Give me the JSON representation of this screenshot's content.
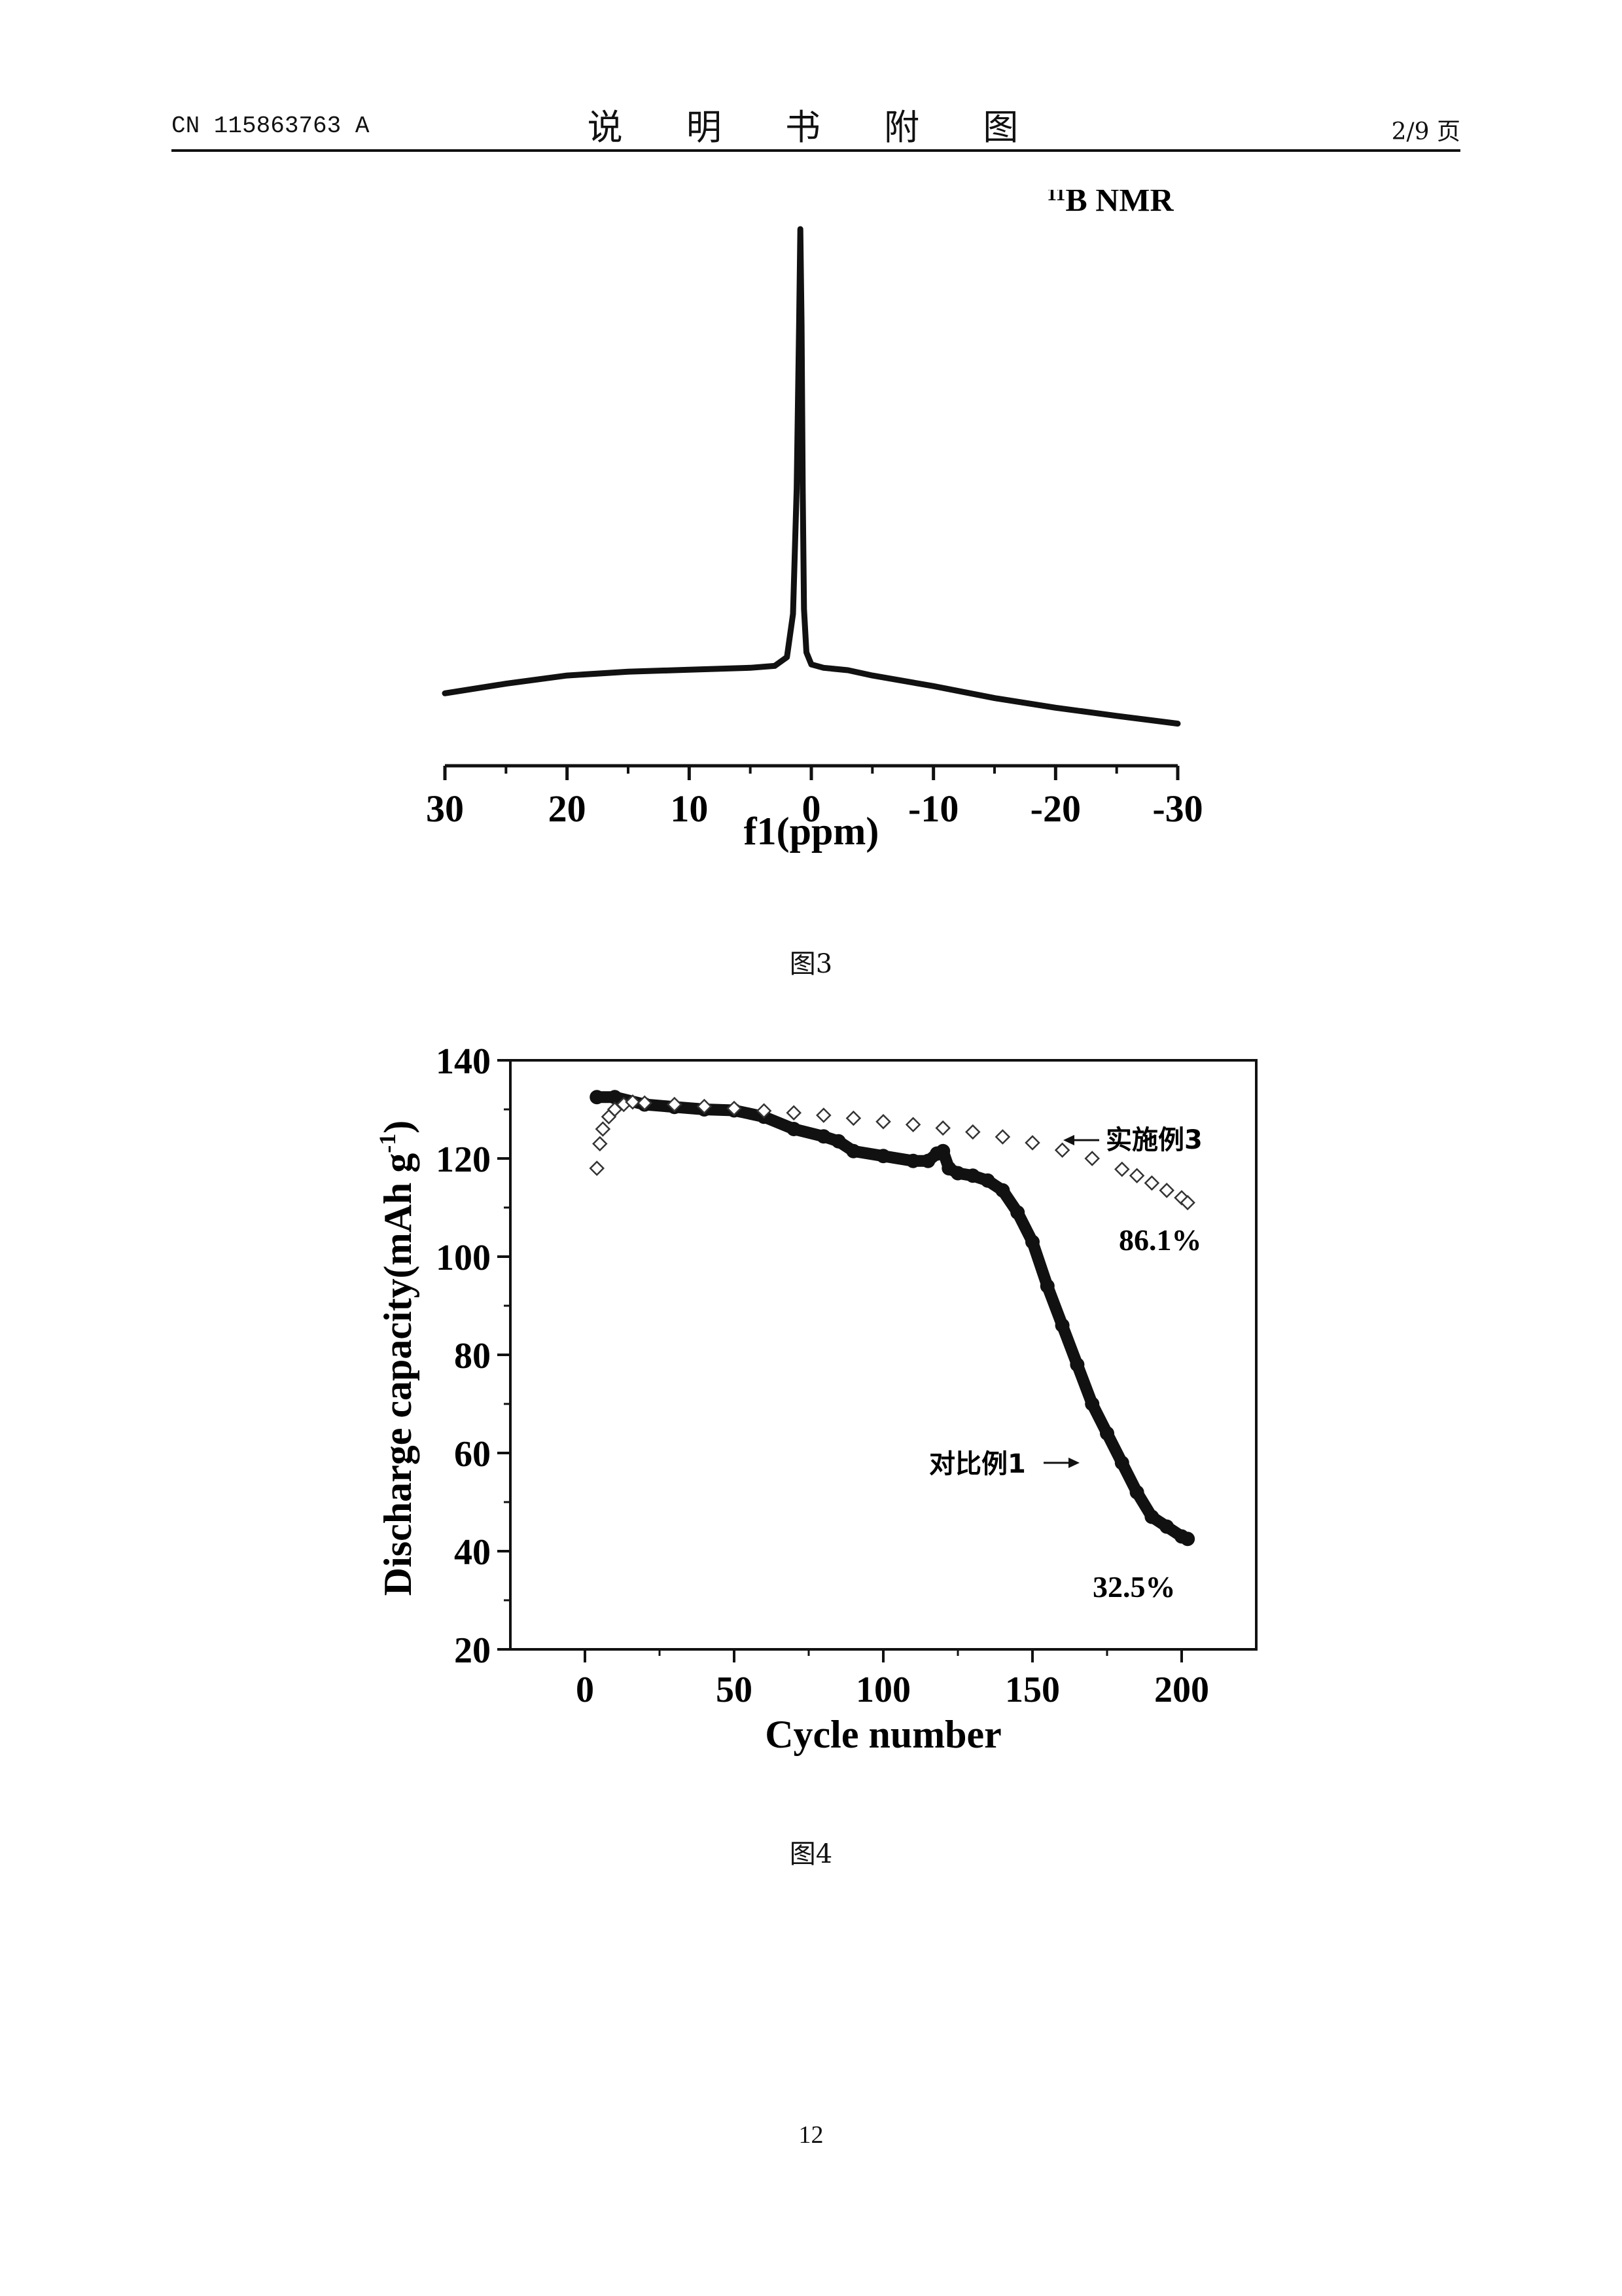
{
  "header": {
    "doc_number": "CN 115863763 A",
    "title": "说 明 书 附 图",
    "page_of": "2/9 页"
  },
  "figure3": {
    "caption": "图3",
    "nucleus_sup": "11",
    "nucleus_label": "B NMR",
    "xlabel": "f1(ppm)"
  },
  "figure4": {
    "caption": "图4",
    "xlabel": "Cycle number",
    "ylabel": "Discharge capacity(mAh g",
    "ylabel_sup": "-1",
    "ylabel_close": ")",
    "label_example": "实施例3",
    "label_comparative": "对比例1",
    "retention_example": "86.1%",
    "retention_comparative": "32.5%"
  },
  "page_number": "12",
  "chart_data": [
    {
      "type": "line",
      "title": "11B NMR",
      "xlabel": "f1(ppm)",
      "ylabel": "",
      "xlim": [
        30,
        -30
      ],
      "x_reversed": true,
      "xticks": [
        30,
        20,
        10,
        0,
        -10,
        -20,
        -30
      ],
      "x_tick_labels": [
        "30",
        "20",
        "10",
        "0",
        "-10",
        "-20",
        "-30"
      ],
      "y_axis_visible": false,
      "grid": false,
      "series": [
        {
          "x": [
            30,
            25,
            20,
            15,
            10,
            5,
            3,
            2,
            1.5,
            1.2,
            1.0,
            0.9,
            0.8,
            0.7,
            0.6,
            0.4,
            0.0,
            -1.0,
            -3,
            -5,
            -10,
            -15,
            -20,
            -25,
            -30
          ],
          "y": [
            0.035,
            0.055,
            0.072,
            0.08,
            0.084,
            0.088,
            0.092,
            0.11,
            0.2,
            0.46,
            0.8,
            1.0,
            0.8,
            0.45,
            0.21,
            0.12,
            0.095,
            0.088,
            0.083,
            0.072,
            0.05,
            0.025,
            0.005,
            -0.012,
            -0.028
          ]
        }
      ]
    },
    {
      "type": "scatter",
      "title": "",
      "xlabel": "Cycle number",
      "ylabel": "Discharge capacity(mAh g-1)",
      "xlim": [
        -25,
        225
      ],
      "ylim": [
        20,
        140
      ],
      "xticks": [
        0,
        50,
        100,
        150,
        200
      ],
      "yticks": [
        20,
        40,
        60,
        80,
        100,
        120,
        140
      ],
      "grid": false,
      "annotations": [
        "实施例3",
        "86.1%",
        "对比例1",
        "32.5%"
      ],
      "series": [
        {
          "name": "实施例3",
          "marker": "open-diamond",
          "x": [
            4,
            5,
            6,
            8,
            10,
            13,
            16,
            20,
            30,
            40,
            50,
            60,
            70,
            80,
            90,
            100,
            110,
            120,
            130,
            140,
            150,
            160,
            170,
            180,
            185,
            190,
            195,
            200,
            202
          ],
          "y": [
            118,
            123,
            126,
            128.5,
            130,
            131,
            131.5,
            131.3,
            131,
            130.6,
            130.2,
            129.7,
            129.3,
            128.8,
            128.2,
            127.5,
            126.9,
            126.2,
            125.4,
            124.4,
            123.2,
            121.7,
            120,
            117.8,
            116.5,
            115,
            113.5,
            112,
            111
          ]
        },
        {
          "name": "对比例1",
          "marker": "filled-circle",
          "x": [
            4,
            10,
            20,
            30,
            40,
            50,
            60,
            70,
            80,
            85,
            90,
            100,
            110,
            115,
            118,
            120,
            122,
            125,
            130,
            135,
            140,
            145,
            150,
            155,
            160,
            165,
            170,
            175,
            180,
            185,
            190,
            195,
            200,
            202
          ],
          "y": [
            132.5,
            132.5,
            131,
            130.5,
            130,
            129.8,
            128.5,
            126,
            124.5,
            123.5,
            121.5,
            120.5,
            119.5,
            119.5,
            121,
            121.5,
            118,
            117,
            116.5,
            115.5,
            113.5,
            109,
            103,
            94,
            86,
            78,
            70,
            64,
            58,
            52,
            47,
            45,
            43,
            42.5
          ]
        }
      ]
    }
  ]
}
